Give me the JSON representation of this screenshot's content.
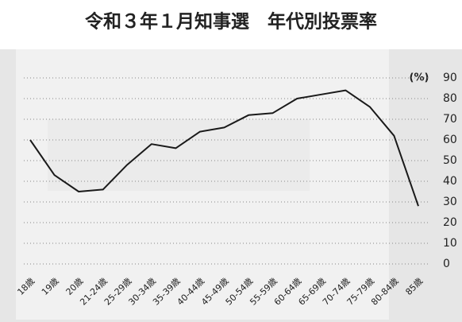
{
  "chart_data": {
    "type": "line",
    "title": "令和３年１月知事選　年代別投票率",
    "unit_label": "(%)",
    "categories": [
      "18歳",
      "19歳",
      "20歳",
      "21-24歳",
      "25-29歳",
      "30-34歳",
      "35-39歳",
      "40-44歳",
      "45-49歳",
      "50-54歳",
      "55-59歳",
      "60-64歳",
      "65-69歳",
      "70-74歳",
      "75-79歳",
      "80-84歳",
      "85歳"
    ],
    "values": [
      60,
      43,
      35,
      36,
      48,
      58,
      56,
      64,
      66,
      72,
      73,
      80,
      82,
      84,
      76,
      62,
      28
    ],
    "color": "#1a1a1a",
    "ylim": [
      0,
      90
    ],
    "yticks": [
      0,
      10,
      20,
      30,
      40,
      50,
      60,
      70,
      80,
      90
    ],
    "grid": true
  }
}
